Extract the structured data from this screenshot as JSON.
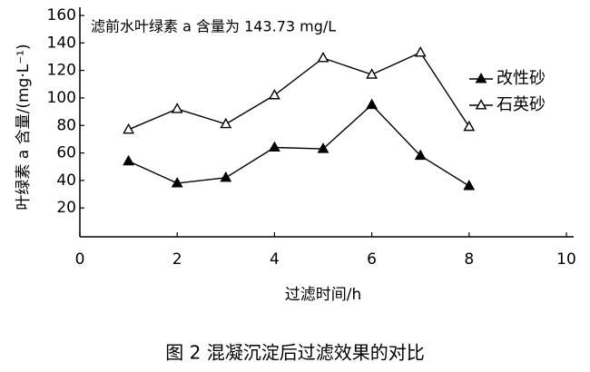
{
  "chart_data": {
    "type": "line",
    "annotation": "滤前水叶绿素 a 含量为 143.73 mg/L",
    "x_label": "过滤时间/h",
    "y_label": "叶绿素 a 含量/(mg·L⁻¹)",
    "caption": "图 2   混凝沉淀后过滤效果的对比",
    "x": [
      1,
      2,
      3,
      4,
      5,
      6,
      7,
      8
    ],
    "series": [
      {
        "name": "改性砂",
        "color": "#000000",
        "marker": "filled",
        "values": [
          54,
          38,
          42,
          64,
          63,
          95,
          58,
          36
        ]
      },
      {
        "name": "石英砂",
        "color": "#000000",
        "marker": "open",
        "values": [
          77,
          92,
          81,
          102,
          129,
          117,
          133,
          79
        ]
      }
    ],
    "xlim": [
      0,
      10
    ],
    "xticks": [
      0,
      2,
      4,
      6,
      8,
      10
    ],
    "ylim": [
      0,
      160
    ],
    "yticks": [
      20,
      40,
      60,
      80,
      100,
      120,
      140,
      160
    ],
    "legend": "upper right",
    "grid": false
  }
}
